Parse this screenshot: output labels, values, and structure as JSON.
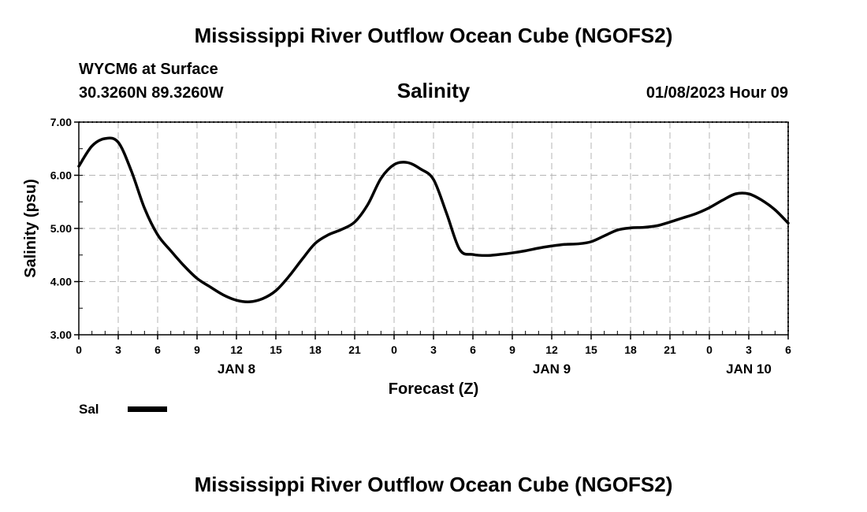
{
  "header": {
    "title": "Mississippi River Outflow Ocean Cube (NGOFS2)",
    "station": "WYCM6 at Surface",
    "coords": "30.3260N  89.3260W",
    "datetime": "01/08/2023 Hour 09"
  },
  "footer": {
    "title": "Mississippi River Outflow Ocean Cube (NGOFS2)"
  },
  "legend": {
    "label": "Sal",
    "color": "#000000"
  },
  "chart_data": {
    "type": "line",
    "title": "Salinity",
    "xlabel": "Forecast (Z)",
    "ylabel": "Salinity (psu)",
    "xlim": [
      0,
      54
    ],
    "ylim": [
      3.0,
      7.0
    ],
    "grid": true,
    "x_ticks": [
      0,
      3,
      6,
      9,
      12,
      15,
      18,
      21,
      24,
      27,
      30,
      33,
      36,
      39,
      42,
      45,
      48,
      51,
      54
    ],
    "x_tick_labels": [
      "0",
      "3",
      "6",
      "9",
      "12",
      "15",
      "18",
      "21",
      "0",
      "3",
      "6",
      "9",
      "12",
      "15",
      "18",
      "21",
      "0",
      "3",
      "6"
    ],
    "y_ticks": [
      3.0,
      4.0,
      5.0,
      6.0,
      7.0
    ],
    "y_tick_labels": [
      "3.00",
      "4.00",
      "5.00",
      "6.00",
      "7.00"
    ],
    "day_labels": [
      {
        "x": 12,
        "label": "JAN 8"
      },
      {
        "x": 36,
        "label": "JAN 9"
      },
      {
        "x": 51,
        "label": "JAN 10"
      }
    ],
    "series": [
      {
        "name": "Sal",
        "x": [
          0,
          1,
          2,
          3,
          4,
          5,
          6,
          7,
          8,
          9,
          10,
          11,
          12,
          13,
          14,
          15,
          16,
          17,
          18,
          19,
          20,
          21,
          22,
          23,
          24,
          25,
          26,
          27,
          28,
          29,
          30,
          31,
          32,
          33,
          34,
          35,
          36,
          37,
          38,
          39,
          40,
          41,
          42,
          43,
          44,
          45,
          46,
          47,
          48,
          49,
          50,
          51,
          52,
          53,
          54
        ],
        "values": [
          6.17,
          6.55,
          6.69,
          6.62,
          6.08,
          5.38,
          4.88,
          4.58,
          4.3,
          4.06,
          3.9,
          3.75,
          3.65,
          3.62,
          3.68,
          3.83,
          4.1,
          4.42,
          4.72,
          4.88,
          4.98,
          5.12,
          5.45,
          5.94,
          6.2,
          6.24,
          6.12,
          5.92,
          5.28,
          4.6,
          4.51,
          4.49,
          4.51,
          4.54,
          4.58,
          4.63,
          4.67,
          4.7,
          4.71,
          4.75,
          4.86,
          4.97,
          5.01,
          5.02,
          5.05,
          5.12,
          5.2,
          5.28,
          5.39,
          5.53,
          5.65,
          5.65,
          5.53,
          5.35,
          5.1
        ]
      }
    ]
  }
}
